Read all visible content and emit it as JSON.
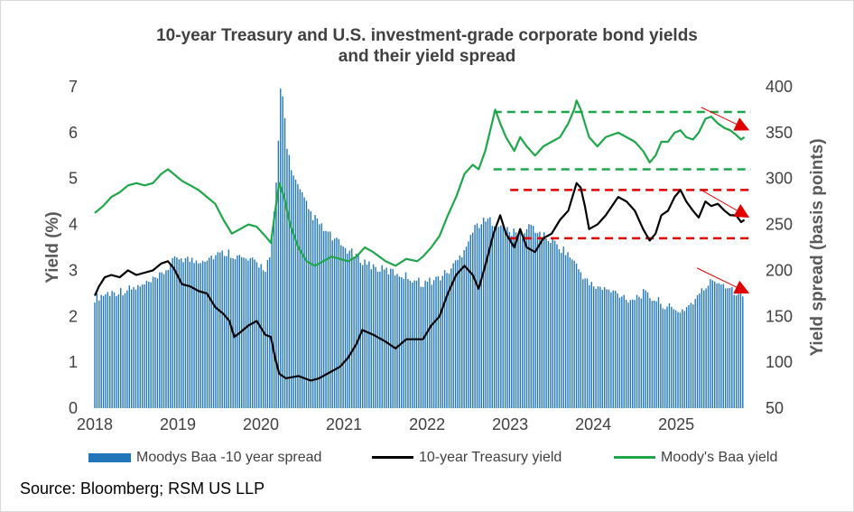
{
  "chart_data": {
    "type": "bar+line",
    "title_lines": [
      "10-year Treasury and U.S. investment-grade corporate bond yields",
      "and their yield spread"
    ],
    "y_left": {
      "label": "Yield (%)",
      "range": [
        0,
        7
      ],
      "ticks": [
        "0",
        "1",
        "2",
        "3",
        "4",
        "5",
        "6",
        "7"
      ]
    },
    "y_right": {
      "label": "Yield spread (basis points)",
      "range": [
        50,
        400
      ],
      "ticks": [
        "50",
        "100",
        "150",
        "200",
        "250",
        "300",
        "350",
        "400"
      ]
    },
    "x": {
      "range": [
        2018,
        2025.9
      ],
      "ticks": [
        "2018",
        "2019",
        "2020",
        "2021",
        "2022",
        "2023",
        "2024",
        "2025"
      ]
    },
    "series": [
      {
        "name": "Moodys Baa -10 year spread",
        "kind": "bar",
        "axis": "right",
        "color": "#2176b9",
        "points": [
          [
            2018.0,
            170
          ],
          [
            2018.15,
            175
          ],
          [
            2018.35,
            178
          ],
          [
            2018.55,
            182
          ],
          [
            2018.75,
            190
          ],
          [
            2018.9,
            205
          ],
          [
            2019.0,
            215
          ],
          [
            2019.2,
            210
          ],
          [
            2019.4,
            215
          ],
          [
            2019.6,
            220
          ],
          [
            2019.8,
            212
          ],
          [
            2019.95,
            208
          ],
          [
            2020.05,
            202
          ],
          [
            2020.12,
            218
          ],
          [
            2020.2,
            310
          ],
          [
            2020.23,
            400
          ],
          [
            2020.27,
            385
          ],
          [
            2020.32,
            330
          ],
          [
            2020.4,
            300
          ],
          [
            2020.5,
            280
          ],
          [
            2020.6,
            262
          ],
          [
            2020.75,
            245
          ],
          [
            2020.9,
            232
          ],
          [
            2021.0,
            225
          ],
          [
            2021.2,
            212
          ],
          [
            2021.4,
            202
          ],
          [
            2021.6,
            198
          ],
          [
            2021.8,
            192
          ],
          [
            2021.95,
            186
          ],
          [
            2022.1,
            190
          ],
          [
            2022.25,
            198
          ],
          [
            2022.4,
            215
          ],
          [
            2022.5,
            235
          ],
          [
            2022.6,
            250
          ],
          [
            2022.75,
            255
          ],
          [
            2022.9,
            248
          ],
          [
            2023.0,
            242
          ],
          [
            2023.15,
            238
          ],
          [
            2023.25,
            250
          ],
          [
            2023.35,
            240
          ],
          [
            2023.5,
            232
          ],
          [
            2023.7,
            218
          ],
          [
            2023.85,
            198
          ],
          [
            2023.95,
            185
          ],
          [
            2024.1,
            180
          ],
          [
            2024.3,
            175
          ],
          [
            2024.45,
            168
          ],
          [
            2024.6,
            175
          ],
          [
            2024.75,
            168
          ],
          [
            2024.9,
            160
          ],
          [
            2025.0,
            155
          ],
          [
            2025.1,
            158
          ],
          [
            2025.25,
            170
          ],
          [
            2025.35,
            182
          ],
          [
            2025.45,
            190
          ],
          [
            2025.6,
            184
          ],
          [
            2025.7,
            178
          ],
          [
            2025.8,
            175
          ]
        ]
      },
      {
        "name": "10-year Treasury yield",
        "kind": "line",
        "axis": "left",
        "color": "#000000",
        "points": [
          [
            2018.0,
            2.45
          ],
          [
            2018.05,
            2.65
          ],
          [
            2018.12,
            2.85
          ],
          [
            2018.2,
            2.9
          ],
          [
            2018.3,
            2.85
          ],
          [
            2018.4,
            3.0
          ],
          [
            2018.5,
            2.9
          ],
          [
            2018.6,
            2.95
          ],
          [
            2018.7,
            3.0
          ],
          [
            2018.8,
            3.15
          ],
          [
            2018.88,
            3.2
          ],
          [
            2018.95,
            3.05
          ],
          [
            2019.05,
            2.7
          ],
          [
            2019.15,
            2.65
          ],
          [
            2019.25,
            2.55
          ],
          [
            2019.35,
            2.5
          ],
          [
            2019.45,
            2.2
          ],
          [
            2019.55,
            2.05
          ],
          [
            2019.62,
            1.9
          ],
          [
            2019.68,
            1.55
          ],
          [
            2019.75,
            1.65
          ],
          [
            2019.85,
            1.8
          ],
          [
            2019.95,
            1.9
          ],
          [
            2020.05,
            1.6
          ],
          [
            2020.12,
            1.55
          ],
          [
            2020.17,
            1.1
          ],
          [
            2020.22,
            0.75
          ],
          [
            2020.3,
            0.65
          ],
          [
            2020.45,
            0.7
          ],
          [
            2020.6,
            0.6
          ],
          [
            2020.7,
            0.65
          ],
          [
            2020.85,
            0.8
          ],
          [
            2020.95,
            0.9
          ],
          [
            2021.05,
            1.1
          ],
          [
            2021.15,
            1.4
          ],
          [
            2021.22,
            1.7
          ],
          [
            2021.35,
            1.6
          ],
          [
            2021.5,
            1.45
          ],
          [
            2021.62,
            1.3
          ],
          [
            2021.75,
            1.5
          ],
          [
            2021.88,
            1.5
          ],
          [
            2021.95,
            1.5
          ],
          [
            2022.05,
            1.8
          ],
          [
            2022.15,
            2.0
          ],
          [
            2022.25,
            2.5
          ],
          [
            2022.35,
            2.9
          ],
          [
            2022.45,
            3.1
          ],
          [
            2022.55,
            2.9
          ],
          [
            2022.62,
            2.6
          ],
          [
            2022.7,
            3.1
          ],
          [
            2022.8,
            3.8
          ],
          [
            2022.88,
            4.2
          ],
          [
            2022.95,
            3.8
          ],
          [
            2023.05,
            3.5
          ],
          [
            2023.12,
            3.9
          ],
          [
            2023.2,
            3.5
          ],
          [
            2023.3,
            3.4
          ],
          [
            2023.4,
            3.7
          ],
          [
            2023.5,
            3.8
          ],
          [
            2023.6,
            4.1
          ],
          [
            2023.7,
            4.3
          ],
          [
            2023.8,
            4.9
          ],
          [
            2023.85,
            4.8
          ],
          [
            2023.9,
            4.4
          ],
          [
            2023.95,
            3.9
          ],
          [
            2024.05,
            4.0
          ],
          [
            2024.15,
            4.2
          ],
          [
            2024.3,
            4.6
          ],
          [
            2024.4,
            4.5
          ],
          [
            2024.5,
            4.3
          ],
          [
            2024.6,
            3.9
          ],
          [
            2024.68,
            3.65
          ],
          [
            2024.75,
            3.8
          ],
          [
            2024.82,
            4.2
          ],
          [
            2024.9,
            4.3
          ],
          [
            2024.98,
            4.6
          ],
          [
            2025.05,
            4.75
          ],
          [
            2025.12,
            4.5
          ],
          [
            2025.2,
            4.3
          ],
          [
            2025.27,
            4.15
          ],
          [
            2025.35,
            4.5
          ],
          [
            2025.42,
            4.4
          ],
          [
            2025.5,
            4.45
          ],
          [
            2025.58,
            4.3
          ],
          [
            2025.65,
            4.2
          ],
          [
            2025.72,
            4.2
          ],
          [
            2025.78,
            4.05
          ],
          [
            2025.82,
            4.1
          ]
        ]
      },
      {
        "name": "Moody's Baa yield",
        "kind": "line",
        "axis": "left",
        "color": "#1fa64a",
        "points": [
          [
            2018.0,
            4.25
          ],
          [
            2018.1,
            4.4
          ],
          [
            2018.2,
            4.6
          ],
          [
            2018.3,
            4.7
          ],
          [
            2018.4,
            4.85
          ],
          [
            2018.5,
            4.9
          ],
          [
            2018.6,
            4.85
          ],
          [
            2018.7,
            4.9
          ],
          [
            2018.8,
            5.1
          ],
          [
            2018.88,
            5.2
          ],
          [
            2018.95,
            5.1
          ],
          [
            2019.05,
            4.95
          ],
          [
            2019.15,
            4.85
          ],
          [
            2019.25,
            4.75
          ],
          [
            2019.35,
            4.6
          ],
          [
            2019.45,
            4.45
          ],
          [
            2019.55,
            4.1
          ],
          [
            2019.65,
            3.8
          ],
          [
            2019.75,
            3.9
          ],
          [
            2019.85,
            4.0
          ],
          [
            2019.95,
            3.95
          ],
          [
            2020.05,
            3.75
          ],
          [
            2020.12,
            3.6
          ],
          [
            2020.18,
            4.4
          ],
          [
            2020.22,
            4.9
          ],
          [
            2020.28,
            4.6
          ],
          [
            2020.35,
            4.0
          ],
          [
            2020.45,
            3.5
          ],
          [
            2020.55,
            3.2
          ],
          [
            2020.65,
            3.1
          ],
          [
            2020.75,
            3.2
          ],
          [
            2020.85,
            3.3
          ],
          [
            2020.95,
            3.25
          ],
          [
            2021.05,
            3.2
          ],
          [
            2021.15,
            3.3
          ],
          [
            2021.25,
            3.5
          ],
          [
            2021.35,
            3.4
          ],
          [
            2021.5,
            3.2
          ],
          [
            2021.62,
            3.1
          ],
          [
            2021.75,
            3.25
          ],
          [
            2021.88,
            3.2
          ],
          [
            2021.95,
            3.3
          ],
          [
            2022.05,
            3.5
          ],
          [
            2022.15,
            3.75
          ],
          [
            2022.25,
            4.2
          ],
          [
            2022.35,
            4.6
          ],
          [
            2022.45,
            5.1
          ],
          [
            2022.55,
            5.3
          ],
          [
            2022.62,
            5.2
          ],
          [
            2022.7,
            5.6
          ],
          [
            2022.78,
            6.2
          ],
          [
            2022.82,
            6.5
          ],
          [
            2022.88,
            6.2
          ],
          [
            2022.95,
            5.9
          ],
          [
            2023.05,
            5.6
          ],
          [
            2023.12,
            5.9
          ],
          [
            2023.2,
            5.7
          ],
          [
            2023.3,
            5.5
          ],
          [
            2023.4,
            5.7
          ],
          [
            2023.5,
            5.8
          ],
          [
            2023.6,
            5.9
          ],
          [
            2023.7,
            6.2
          ],
          [
            2023.77,
            6.5
          ],
          [
            2023.8,
            6.7
          ],
          [
            2023.85,
            6.5
          ],
          [
            2023.9,
            6.2
          ],
          [
            2023.95,
            5.9
          ],
          [
            2024.05,
            5.7
          ],
          [
            2024.15,
            5.9
          ],
          [
            2024.3,
            6.0
          ],
          [
            2024.4,
            5.9
          ],
          [
            2024.5,
            5.8
          ],
          [
            2024.6,
            5.6
          ],
          [
            2024.68,
            5.35
          ],
          [
            2024.75,
            5.5
          ],
          [
            2024.82,
            5.8
          ],
          [
            2024.9,
            5.8
          ],
          [
            2024.98,
            6.0
          ],
          [
            2025.05,
            6.05
          ],
          [
            2025.12,
            5.9
          ],
          [
            2025.2,
            5.85
          ],
          [
            2025.27,
            6.0
          ],
          [
            2025.35,
            6.3
          ],
          [
            2025.42,
            6.35
          ],
          [
            2025.5,
            6.2
          ],
          [
            2025.58,
            6.1
          ],
          [
            2025.65,
            6.05
          ],
          [
            2025.72,
            5.95
          ],
          [
            2025.78,
            5.85
          ],
          [
            2025.82,
            5.9
          ]
        ]
      }
    ],
    "annotations": {
      "green_dashed_left": [
        5.2,
        6.45
      ],
      "red_dashed_left": [
        3.7,
        4.75
      ],
      "green_dashed_x": [
        2022.8,
        2025.9
      ],
      "red_dashed_x": [
        2023.0,
        2025.9
      ],
      "red_arrows": [
        {
          "from": [
            2025.3,
            6.55
          ],
          "to": [
            2025.88,
            6.05
          ]
        },
        {
          "from": [
            2025.3,
            4.75
          ],
          "to": [
            2025.88,
            4.15
          ]
        },
        {
          "from": [
            2025.25,
            3.05
          ],
          "to": [
            2025.88,
            2.5
          ]
        }
      ],
      "bar_color": "#2176b9",
      "green_color": "#1fa64a",
      "red_color": "#e00000"
    }
  },
  "legend": {
    "spread": "Moodys Baa -10 year spread",
    "treasury": "10-year Treasury yield",
    "baa": "Moody's Baa yield"
  },
  "source": "Source: Bloomberg; RSM US LLP"
}
